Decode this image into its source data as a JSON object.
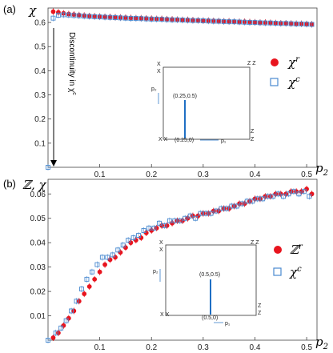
{
  "panels": {
    "a_label": "(a)",
    "b_label": "(b)",
    "a_ylabel": "χ",
    "b_ylabel": "ℤ, χ",
    "xlabel": "p",
    "xlabel_sub": "2",
    "annotation": "Discontinuity in χ",
    "annotation_sup": "c"
  },
  "legend": {
    "a": [
      {
        "symbol": "χ",
        "sup": "r",
        "marker": "red-dot"
      },
      {
        "symbol": "χ",
        "sup": "c",
        "marker": "blue-open-square"
      }
    ],
    "b": [
      {
        "symbol": "ℤ",
        "sup": "r",
        "marker": "red-dot"
      },
      {
        "symbol": "χ",
        "sup": "c",
        "marker": "blue-open-square"
      }
    ]
  },
  "insets": {
    "a": {
      "corner_tl_top": "X",
      "corner_tl_bot": "X",
      "corner_tr": "Z Z",
      "corner_br_top": "Z",
      "corner_br_bot": "Z",
      "corner_bl": "X X",
      "ylabel": "p₂",
      "xlabel": "p₁",
      "point_label": "(0.25,0.5)",
      "base_label": "(0.25,0)"
    },
    "b": {
      "corner_tl_top": "X",
      "corner_tl_bot": "X",
      "corner_tr": "Z Z",
      "corner_br_top": "Z",
      "corner_br_bot": "Z",
      "corner_bl": "X X",
      "ylabel": "p₂",
      "xlabel": "p₁",
      "point_label": "(0.5,0.5)",
      "base_label": "(0.5,0)"
    }
  },
  "colors": {
    "red": "#e8141e",
    "blue": "#4a8ad0",
    "inset_line": "#1f6fc4"
  },
  "chart_data": [
    {
      "type": "scatter",
      "panel": "a",
      "xlabel": "p2",
      "ylabel": "χ",
      "xlim": [
        0,
        0.52
      ],
      "ylim": [
        0,
        0.66
      ],
      "xticks": [
        0.1,
        0.2,
        0.3,
        0.4,
        0.5
      ],
      "yticks": [
        0.1,
        0.2,
        0.3,
        0.4,
        0.5,
        0.6
      ],
      "series": [
        {
          "name": "χ^r",
          "x": [
            0.01,
            0.02,
            0.03,
            0.04,
            0.05,
            0.06,
            0.07,
            0.08,
            0.09,
            0.1,
            0.11,
            0.12,
            0.13,
            0.14,
            0.15,
            0.16,
            0.17,
            0.18,
            0.19,
            0.2,
            0.21,
            0.22,
            0.23,
            0.24,
            0.25,
            0.26,
            0.27,
            0.28,
            0.29,
            0.3,
            0.31,
            0.32,
            0.33,
            0.34,
            0.35,
            0.36,
            0.37,
            0.38,
            0.39,
            0.4,
            0.41,
            0.42,
            0.43,
            0.44,
            0.45,
            0.46,
            0.47,
            0.48,
            0.49,
            0.5,
            0.51
          ],
          "y": [
            0.645,
            0.642,
            0.638,
            0.635,
            0.633,
            0.631,
            0.629,
            0.627,
            0.626,
            0.625,
            0.624,
            0.623,
            0.622,
            0.621,
            0.62,
            0.619,
            0.618,
            0.618,
            0.617,
            0.616,
            0.615,
            0.615,
            0.614,
            0.613,
            0.612,
            0.611,
            0.611,
            0.61,
            0.609,
            0.608,
            0.608,
            0.607,
            0.606,
            0.605,
            0.605,
            0.604,
            0.603,
            0.603,
            0.602,
            0.601,
            0.6,
            0.6,
            0.599,
            0.598,
            0.597,
            0.597,
            0.596,
            0.595,
            0.595,
            0.594,
            0.593
          ]
        },
        {
          "name": "χ^c",
          "x": [
            0.0,
            0.01,
            0.02,
            0.03,
            0.04,
            0.05,
            0.06,
            0.07,
            0.08,
            0.09,
            0.1,
            0.11,
            0.12,
            0.13,
            0.14,
            0.15,
            0.16,
            0.17,
            0.18,
            0.19,
            0.2,
            0.21,
            0.22,
            0.23,
            0.24,
            0.25,
            0.26,
            0.27,
            0.28,
            0.29,
            0.3,
            0.31,
            0.32,
            0.33,
            0.34,
            0.35,
            0.36,
            0.37,
            0.38,
            0.39,
            0.4,
            0.41,
            0.42,
            0.43,
            0.44,
            0.45,
            0.46,
            0.47,
            0.48,
            0.49,
            0.5,
            0.51
          ],
          "y": [
            0.0,
            0.618,
            0.63,
            0.632,
            0.631,
            0.629,
            0.628,
            0.626,
            0.625,
            0.624,
            0.623,
            0.622,
            0.621,
            0.62,
            0.619,
            0.618,
            0.617,
            0.617,
            0.616,
            0.615,
            0.614,
            0.614,
            0.613,
            0.612,
            0.611,
            0.611,
            0.61,
            0.609,
            0.608,
            0.608,
            0.607,
            0.606,
            0.605,
            0.605,
            0.604,
            0.603,
            0.603,
            0.602,
            0.601,
            0.6,
            0.6,
            0.599,
            0.598,
            0.598,
            0.597,
            0.596,
            0.596,
            0.595,
            0.594,
            0.594,
            0.593,
            0.592
          ]
        }
      ]
    },
    {
      "type": "scatter",
      "panel": "b",
      "xlabel": "p2",
      "ylabel": "ℤ, χ",
      "xlim": [
        0,
        0.52
      ],
      "ylim": [
        0,
        0.066
      ],
      "xticks": [
        0.1,
        0.2,
        0.3,
        0.4,
        0.5
      ],
      "yticks": [
        0.01,
        0.02,
        0.03,
        0.04,
        0.05,
        0.06
      ],
      "series": [
        {
          "name": "ℤ^r",
          "x": [
            0.01,
            0.02,
            0.03,
            0.04,
            0.05,
            0.06,
            0.07,
            0.08,
            0.09,
            0.1,
            0.11,
            0.12,
            0.13,
            0.14,
            0.15,
            0.16,
            0.17,
            0.18,
            0.19,
            0.2,
            0.21,
            0.22,
            0.23,
            0.24,
            0.25,
            0.26,
            0.27,
            0.28,
            0.29,
            0.3,
            0.31,
            0.32,
            0.33,
            0.34,
            0.35,
            0.36,
            0.37,
            0.38,
            0.39,
            0.4,
            0.41,
            0.42,
            0.43,
            0.44,
            0.45,
            0.46,
            0.47,
            0.48,
            0.49,
            0.5,
            0.51
          ],
          "y": [
            0.001,
            0.003,
            0.006,
            0.009,
            0.012,
            0.016,
            0.019,
            0.022,
            0.025,
            0.028,
            0.031,
            0.033,
            0.034,
            0.036,
            0.038,
            0.04,
            0.041,
            0.042,
            0.044,
            0.045,
            0.046,
            0.047,
            0.047,
            0.048,
            0.049,
            0.049,
            0.05,
            0.051,
            0.051,
            0.052,
            0.052,
            0.053,
            0.053,
            0.054,
            0.054,
            0.055,
            0.056,
            0.056,
            0.057,
            0.058,
            0.058,
            0.059,
            0.059,
            0.06,
            0.06,
            0.06,
            0.061,
            0.061,
            0.061,
            0.062,
            0.06
          ]
        },
        {
          "name": "χ^c",
          "x": [
            0.0,
            0.015,
            0.025,
            0.035,
            0.045,
            0.055,
            0.065,
            0.075,
            0.085,
            0.095,
            0.105,
            0.115,
            0.125,
            0.135,
            0.145,
            0.155,
            0.165,
            0.175,
            0.185,
            0.195,
            0.205,
            0.215,
            0.225,
            0.235,
            0.245,
            0.255,
            0.265,
            0.275,
            0.285,
            0.295,
            0.305,
            0.315,
            0.325,
            0.335,
            0.345,
            0.355,
            0.365,
            0.375,
            0.385,
            0.395,
            0.405,
            0.415,
            0.425,
            0.435,
            0.445,
            0.455,
            0.465,
            0.475,
            0.485,
            0.495,
            0.505
          ],
          "y": [
            0.0,
            0.003,
            0.005,
            0.008,
            0.012,
            0.016,
            0.021,
            0.025,
            0.028,
            0.031,
            0.034,
            0.034,
            0.035,
            0.037,
            0.039,
            0.041,
            0.042,
            0.043,
            0.045,
            0.046,
            0.046,
            0.048,
            0.047,
            0.049,
            0.049,
            0.049,
            0.05,
            0.051,
            0.05,
            0.052,
            0.052,
            0.052,
            0.053,
            0.054,
            0.054,
            0.055,
            0.055,
            0.056,
            0.057,
            0.057,
            0.058,
            0.058,
            0.059,
            0.059,
            0.06,
            0.059,
            0.06,
            0.061,
            0.06,
            0.061,
            0.059
          ]
        }
      ]
    }
  ]
}
